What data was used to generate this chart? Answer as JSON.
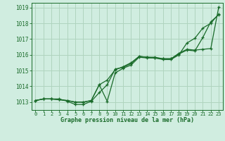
{
  "bg_color": "#d0ede0",
  "grid_color": "#b0d4be",
  "line_color": "#1a6b2a",
  "xlabel": "Graphe pression niveau de la mer (hPa)",
  "xlim": [
    -0.5,
    23.5
  ],
  "ylim": [
    1012.5,
    1019.3
  ],
  "yticks": [
    1013,
    1014,
    1015,
    1016,
    1017,
    1018,
    1019
  ],
  "xticks": [
    0,
    1,
    2,
    3,
    4,
    5,
    6,
    7,
    8,
    9,
    10,
    11,
    12,
    13,
    14,
    15,
    16,
    17,
    18,
    19,
    20,
    21,
    22,
    23
  ],
  "line1": [
    1013.1,
    1013.2,
    1013.2,
    1013.2,
    1013.05,
    1012.85,
    1012.85,
    1013.05,
    1013.6,
    1014.1,
    1015.1,
    1015.2,
    1015.45,
    1015.9,
    1015.85,
    1015.8,
    1015.7,
    1015.7,
    1016.0,
    1016.75,
    1017.05,
    1017.7,
    1018.0,
    1018.6
  ],
  "line2": [
    1013.1,
    1013.2,
    1013.2,
    1013.15,
    1013.1,
    1013.0,
    1013.0,
    1013.1,
    1014.1,
    1014.4,
    1015.05,
    1015.25,
    1015.5,
    1015.9,
    1015.85,
    1015.85,
    1015.75,
    1015.75,
    1016.1,
    1016.35,
    1016.3,
    1016.35,
    1016.4,
    1019.05
  ],
  "line3": [
    1013.1,
    1013.2,
    1013.2,
    1013.15,
    1013.1,
    1013.0,
    1013.0,
    1013.1,
    1014.1,
    1013.05,
    1014.85,
    1015.15,
    1015.35,
    1015.85,
    1015.8,
    1015.8,
    1015.75,
    1015.75,
    1016.05,
    1016.3,
    1016.25,
    1017.1,
    1018.1,
    1018.55
  ]
}
